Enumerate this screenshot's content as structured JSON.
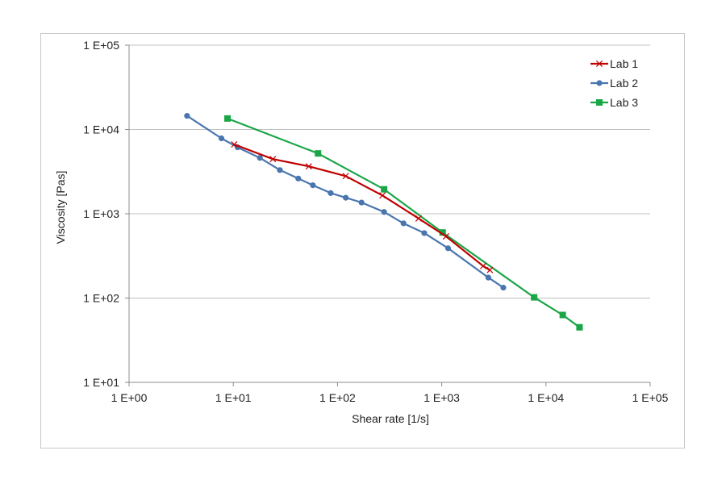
{
  "chart_data": {
    "type": "line",
    "xlabel": "Shear rate   [1/s]",
    "ylabel": "Viscosity   [Pas]",
    "xscale": "log",
    "yscale": "log",
    "xlim": [
      1,
      100000
    ],
    "ylim": [
      10,
      100000
    ],
    "x_ticks": [
      {
        "value": 1,
        "label": "1 E+00"
      },
      {
        "value": 10,
        "label": "1 E+01"
      },
      {
        "value": 100,
        "label": "1 E+02"
      },
      {
        "value": 1000,
        "label": "1 E+03"
      },
      {
        "value": 10000,
        "label": "1 E+04"
      },
      {
        "value": 100000,
        "label": "1 E+05"
      }
    ],
    "y_ticks": [
      {
        "value": 10,
        "label": "1 E+01"
      },
      {
        "value": 100,
        "label": "1 E+02"
      },
      {
        "value": 1000,
        "label": "1 E+03"
      },
      {
        "value": 10000,
        "label": "1 E+04"
      },
      {
        "value": 100000,
        "label": "1 E+05"
      }
    ],
    "grid": "horizontal",
    "legend_position": "top-right",
    "series": [
      {
        "name": "Lab 1",
        "color": "#c00000",
        "marker": "x",
        "points": [
          {
            "x": 10.2,
            "y": 6650
          },
          {
            "x": 24,
            "y": 4450
          },
          {
            "x": 53,
            "y": 3650
          },
          {
            "x": 120,
            "y": 2800
          },
          {
            "x": 270,
            "y": 1650
          },
          {
            "x": 600,
            "y": 880
          },
          {
            "x": 1100,
            "y": 540
          },
          {
            "x": 2500,
            "y": 240
          },
          {
            "x": 2900,
            "y": 215
          }
        ]
      },
      {
        "name": "Lab 2",
        "color": "#4a76b0",
        "marker": "circle",
        "points": [
          {
            "x": 3.6,
            "y": 14500
          },
          {
            "x": 7.7,
            "y": 7850
          },
          {
            "x": 11,
            "y": 6150
          },
          {
            "x": 18,
            "y": 4600
          },
          {
            "x": 28,
            "y": 3300
          },
          {
            "x": 42,
            "y": 2620
          },
          {
            "x": 58,
            "y": 2180
          },
          {
            "x": 86,
            "y": 1760
          },
          {
            "x": 120,
            "y": 1550
          },
          {
            "x": 170,
            "y": 1360
          },
          {
            "x": 280,
            "y": 1050
          },
          {
            "x": 430,
            "y": 770
          },
          {
            "x": 680,
            "y": 590
          },
          {
            "x": 1150,
            "y": 390
          },
          {
            "x": 2800,
            "y": 175
          },
          {
            "x": 3900,
            "y": 133
          }
        ]
      },
      {
        "name": "Lab 3",
        "color": "#1aa547",
        "marker": "square",
        "points": [
          {
            "x": 8.8,
            "y": 13500
          },
          {
            "x": 65,
            "y": 5200
          },
          {
            "x": 280,
            "y": 1950
          },
          {
            "x": 1020,
            "y": 600
          },
          {
            "x": 7700,
            "y": 102
          },
          {
            "x": 14500,
            "y": 63
          },
          {
            "x": 21000,
            "y": 45
          }
        ]
      }
    ]
  }
}
